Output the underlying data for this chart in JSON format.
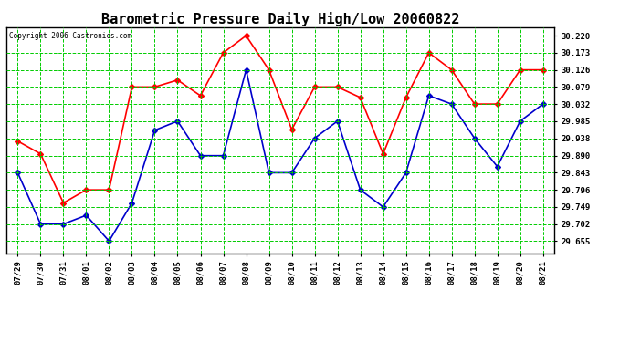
{
  "title": "Barometric Pressure Daily High/Low 20060822",
  "copyright": "Copyright 2006 Castronics.com",
  "x_labels": [
    "07/29",
    "07/30",
    "07/31",
    "08/01",
    "08/02",
    "08/03",
    "08/04",
    "08/05",
    "08/06",
    "08/07",
    "08/08",
    "08/09",
    "08/10",
    "08/11",
    "08/12",
    "08/13",
    "08/14",
    "08/15",
    "08/16",
    "08/17",
    "08/18",
    "08/19",
    "08/20",
    "08/21"
  ],
  "high_values": [
    29.93,
    29.895,
    29.76,
    29.796,
    29.796,
    30.079,
    30.079,
    30.098,
    30.055,
    30.173,
    30.22,
    30.126,
    29.962,
    30.079,
    30.079,
    30.05,
    29.895,
    30.05,
    30.173,
    30.126,
    30.032,
    30.032,
    30.126,
    30.126
  ],
  "low_values": [
    29.843,
    29.702,
    29.702,
    29.726,
    29.655,
    29.76,
    29.96,
    29.985,
    29.89,
    29.89,
    30.126,
    29.843,
    29.843,
    29.938,
    29.985,
    29.796,
    29.749,
    29.843,
    30.055,
    30.032,
    29.938,
    29.86,
    29.985,
    30.032
  ],
  "high_color": "#ff0000",
  "low_color": "#0000cc",
  "bg_color": "#ffffff",
  "plot_bg_color": "#ffffff",
  "grid_color": "#00cc00",
  "title_fontsize": 11,
  "yticks": [
    29.655,
    29.702,
    29.749,
    29.796,
    29.843,
    29.89,
    29.938,
    29.985,
    30.032,
    30.079,
    30.126,
    30.173,
    30.22
  ],
  "ylim": [
    29.622,
    30.243
  ],
  "marker": "D",
  "markersize": 3,
  "linewidth": 1.2
}
